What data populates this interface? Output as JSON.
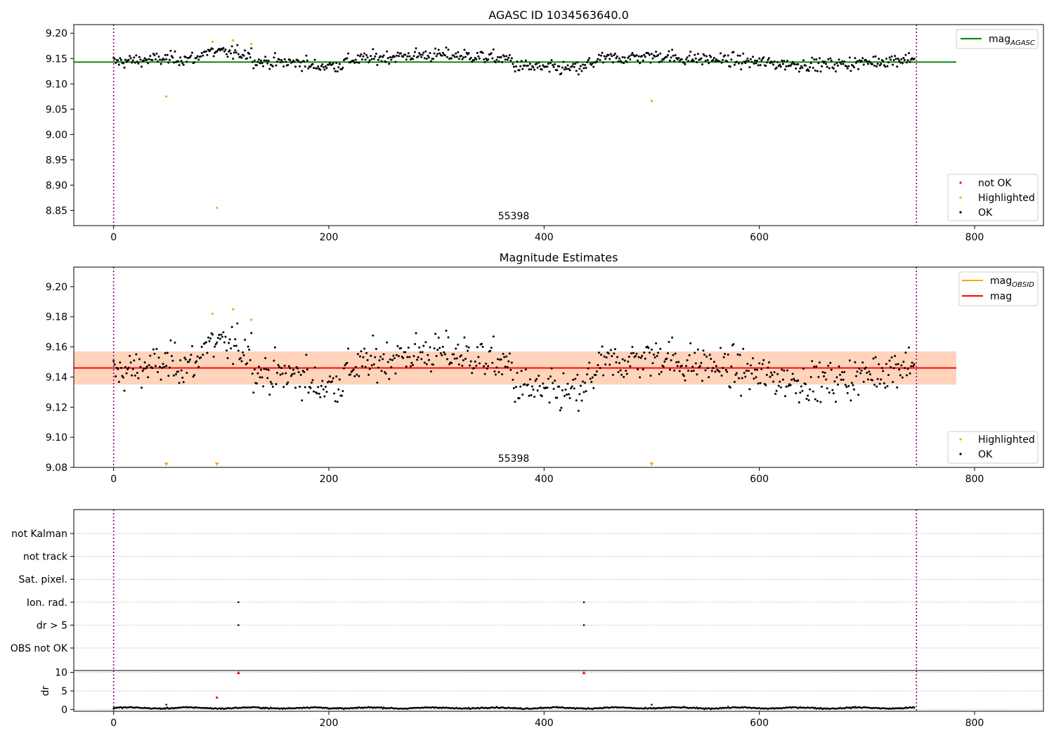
{
  "chart_data": [
    {
      "type": "scatter",
      "title": "AGASC ID 1034563640.0",
      "xlim": [
        -37,
        864
      ],
      "ylim": [
        8.82,
        9.217
      ],
      "xticks": [
        "0",
        "200",
        "400",
        "600",
        "800"
      ],
      "yticks": [
        "9.20",
        "9.15",
        "9.10",
        "9.05",
        "9.00",
        "8.95",
        "8.90",
        "8.85"
      ],
      "annotation": "55398",
      "vlines_x": [
        0,
        746
      ],
      "reference_line": {
        "name": "mag",
        "subscript": "AGASC",
        "value": 9.143,
        "x_range": [
          -37,
          783
        ],
        "color": "#008000"
      },
      "legend_top": [
        {
          "name": "mag",
          "subscript": "AGASC",
          "marker": "line",
          "color": "#008000"
        }
      ],
      "legend_bottom": [
        {
          "name": "not OK",
          "color": "#ff0000"
        },
        {
          "name": "Highlighted",
          "color": "#ffa500"
        },
        {
          "name": "OK",
          "color": "#000000"
        }
      ],
      "highlighted_points": [
        [
          49,
          9.075
        ],
        [
          92,
          9.183
        ],
        [
          96,
          8.855
        ],
        [
          111,
          9.186
        ],
        [
          128,
          9.179
        ],
        [
          500,
          9.066
        ]
      ],
      "ok_series": {
        "n": 745,
        "mean": 9.147,
        "scatter": 0.009
      }
    },
    {
      "type": "scatter",
      "title": "Magnitude Estimates",
      "xlim": [
        -37,
        864
      ],
      "ylim": [
        9.08,
        9.213
      ],
      "xticks": [
        "0",
        "200",
        "400",
        "600",
        "800"
      ],
      "yticks": [
        "9.20",
        "9.18",
        "9.16",
        "9.14",
        "9.12",
        "9.10",
        "9.08"
      ],
      "annotation": "55398",
      "vlines_x": [
        0,
        746
      ],
      "mag_line": {
        "name": "mag",
        "value": 9.146,
        "band": [
          9.135,
          9.157
        ],
        "x_range": [
          -37,
          783
        ],
        "color": "#ff0000",
        "band_color": "#ffc0cb"
      },
      "mag_obsid": {
        "name": "mag",
        "subscript": "OBSID",
        "value": 9.146,
        "band": [
          9.135,
          9.157
        ],
        "x_range": [
          -37,
          783
        ],
        "color": "#ffa500"
      },
      "legend_top": [
        {
          "name": "mag",
          "subscript": "OBSID",
          "marker": "line",
          "color": "#ffa500"
        },
        {
          "name": "mag",
          "marker": "line",
          "color": "#ff0000"
        }
      ],
      "legend_bottom": [
        {
          "name": "Highlighted",
          "color": "#ffa500"
        },
        {
          "name": "OK",
          "color": "#000000"
        }
      ],
      "highlighted_points": [
        [
          92,
          9.182
        ],
        [
          111,
          9.185
        ],
        [
          128,
          9.178
        ]
      ],
      "clipped_markers_x": [
        49,
        96,
        500
      ],
      "ok_series": {
        "n": 745,
        "mean": 9.146,
        "scatter": 0.009
      }
    },
    {
      "type": "scatter",
      "title": "",
      "xlim": [
        -37,
        864
      ],
      "categories": [
        "not Kalman",
        "not track",
        "Sat. pixel.",
        "Ion. rad.",
        "dr > 5",
        "OBS not OK"
      ],
      "flag_points": [
        {
          "category": "Ion. rad.",
          "x": [
            116,
            437
          ]
        },
        {
          "category": "dr > 5",
          "x": [
            116,
            437
          ]
        }
      ],
      "vlines_x": [
        0,
        746
      ]
    },
    {
      "type": "scatter",
      "title": "",
      "ylabel": "dr",
      "xlim": [
        -37,
        864
      ],
      "ylim": [
        -0.5,
        10.5
      ],
      "xticks": [
        "0",
        "200",
        "400",
        "600",
        "800"
      ],
      "yticks": [
        "10",
        "5",
        "0"
      ],
      "not_ok_points": [
        [
          116,
          9.9
        ],
        [
          437,
          9.9
        ]
      ],
      "highlighted_points": [
        [
          96,
          3.2
        ]
      ],
      "outliers": [
        [
          49,
          1.3
        ],
        [
          500,
          1.3
        ]
      ],
      "ok_series": {
        "n": 745,
        "mean": 0.4
      },
      "vlines_x": [
        0,
        746
      ]
    }
  ]
}
